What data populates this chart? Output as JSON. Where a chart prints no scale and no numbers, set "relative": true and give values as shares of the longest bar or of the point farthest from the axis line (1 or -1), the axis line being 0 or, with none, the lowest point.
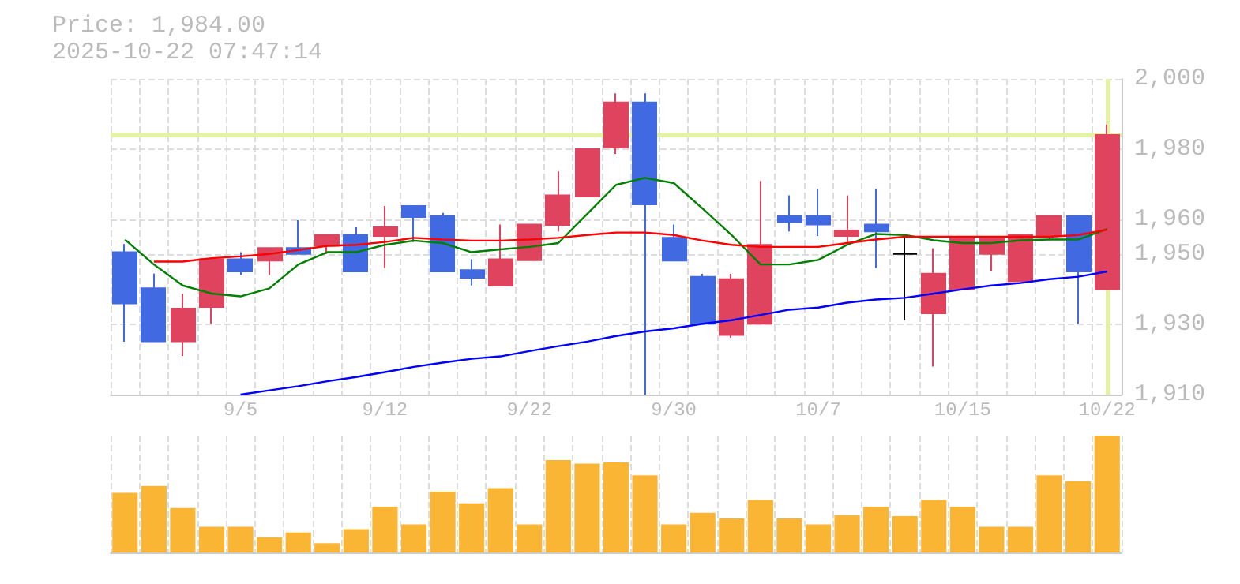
{
  "chart_data": [
    {
      "type": "candlestick",
      "title": "Price: 1,984.00",
      "subtitle": "2025-10-22 07:47:14",
      "categories": [
        null,
        null,
        null,
        null,
        "9/5",
        null,
        null,
        null,
        null,
        "9/12",
        null,
        null,
        null,
        null,
        "9/22",
        null,
        null,
        null,
        null,
        "9/30",
        null,
        null,
        null,
        null,
        "10/7",
        null,
        null,
        null,
        null,
        "10/15",
        null,
        null,
        null,
        null,
        "10/22"
      ],
      "ohlc": [
        [
          1950.6,
          1952.9,
          1925.1,
          1936.0
        ],
        [
          1940.3,
          1944.5,
          1925.2,
          1925.2
        ],
        [
          1925.2,
          1938.8,
          1921.0,
          1934.5
        ],
        [
          1935.0,
          1948.6,
          1930.2,
          1948.6
        ],
        [
          1948.6,
          1950.6,
          1944.1,
          1945.1
        ],
        [
          1948.2,
          1951.8,
          1944.1,
          1951.8
        ],
        [
          1951.8,
          1959.7,
          1950.1,
          1950.1
        ],
        [
          1952.4,
          1955.5,
          1950.1,
          1955.5
        ],
        [
          1955.5,
          1957.7,
          1945.1,
          1945.1
        ],
        [
          1955.2,
          1963.8,
          1946.1,
          1957.7
        ],
        [
          1963.8,
          1963.8,
          1953.5,
          1960.6
        ],
        [
          1960.9,
          1961.8,
          1945.1,
          1945.1
        ],
        [
          1945.5,
          1948.6,
          1941.1,
          1943.3
        ],
        [
          1941.1,
          1958.5,
          1941.1,
          1948.6
        ],
        [
          1948.3,
          1958.5,
          1948.3,
          1958.5
        ],
        [
          1958.3,
          1973.6,
          1956.5,
          1966.8
        ],
        [
          1966.5,
          1980.0,
          1966.5,
          1980.0
        ],
        [
          1980.5,
          1995.9,
          1978.6,
          1993.3
        ],
        [
          1993.3,
          1995.9,
          1910,
          1964.2
        ],
        [
          1954.7,
          1958.5,
          1948.2,
          1948.2
        ],
        [
          1943.6,
          1944.4,
          1930.2,
          1930.2
        ],
        [
          1927.0,
          1944.4,
          1926.2,
          1942.9
        ],
        [
          1930.2,
          1970.9,
          1930.2,
          1952.7
        ],
        [
          1960.9,
          1966.8,
          1956.5,
          1959.2
        ],
        [
          1960.9,
          1968.6,
          1955.2,
          1958.5
        ],
        [
          1955.2,
          1966.8,
          1953.5,
          1956.8
        ],
        [
          1958.5,
          1968.6,
          1946.1,
          1956.5
        ],
        [
          1950.1,
          1954.7,
          1931.2,
          1950.1
        ],
        [
          1933.2,
          1951.7,
          1918.0,
          1944.5
        ],
        [
          1940.0,
          1954.7,
          1940.0,
          1954.7
        ],
        [
          1950.1,
          1954.7,
          1945.1,
          1954.7
        ],
        [
          1942.3,
          1955.5,
          1942.3,
          1955.5
        ],
        [
          1955.2,
          1960.9,
          1954.0,
          1960.9
        ],
        [
          1960.9,
          1960.9,
          1930.2,
          1945.1
        ],
        [
          1940.0,
          1987.0,
          1940.0,
          1984.0
        ]
      ],
      "colors": [
        "#4169e1",
        "#4169e1",
        "#e0435e",
        "#e0435e",
        "#4169e1",
        "#e0435e",
        "#4169e1",
        "#e0435e",
        "#4169e1",
        "#e0435e",
        "#4169e1",
        "#4169e1",
        "#4169e1",
        "#e0435e",
        "#e0435e",
        "#e0435e",
        "#e0435e",
        "#e0435e",
        "#4169e1",
        "#4169e1",
        "#4169e1",
        "#e0435e",
        "#e0435e",
        "#4169e1",
        "#4169e1",
        "#e0435e",
        "#4169e1",
        "#000000",
        "#e0435e",
        "#e0435e",
        "#e0435e",
        "#e0435e",
        "#e0435e",
        "#4169e1",
        "#e0435e"
      ],
      "series": [
        {
          "type": "line",
          "color": "#008000",
          "values": [
            1954.2,
            1947.1,
            1941.1,
            1938.8,
            1938.0,
            1940.3,
            1947.1,
            1950.6,
            1950.6,
            1952.7,
            1953.9,
            1953.2,
            1950.6,
            1951.4,
            1952.1,
            1953.2,
            1961.5,
            1969.8,
            1971.8,
            1970.3,
            1963.0,
            1955.5,
            1947.1,
            1947.1,
            1948.4,
            1952.7,
            1955.8,
            1955.5,
            1954.0,
            1953.2,
            1953.2,
            1954.0,
            1954.2,
            1954.2,
            1957.2
          ]
        },
        {
          "type": "line",
          "color": "#ff0000",
          "values": [
            null,
            1947.9,
            1947.9,
            1948.9,
            1949.4,
            1950.1,
            1951.2,
            1952.4,
            1952.7,
            1953.5,
            1954.7,
            1954.2,
            1953.9,
            1953.9,
            1954.2,
            1954.7,
            1955.5,
            1956.2,
            1956.2,
            1955.5,
            1953.9,
            1952.7,
            1952.1,
            1952.1,
            1952.1,
            1953.2,
            1954.2,
            1955.0,
            1955.0,
            1955.0,
            1955.0,
            1955.0,
            1955.0,
            1955.5,
            1957.0
          ]
        },
        {
          "type": "line",
          "color": "#0000ff",
          "values": [
            null,
            null,
            null,
            null,
            1910,
            1911.2,
            1912.4,
            1913.8,
            1915.0,
            1916.4,
            1917.9,
            1919.1,
            1920.2,
            1920.9,
            1922.4,
            1923.8,
            1925.1,
            1926.7,
            1928.0,
            1928.9,
            1930.2,
            1931.2,
            1932.7,
            1934.2,
            1934.8,
            1936.2,
            1937.1,
            1937.6,
            1938.8,
            1940.0,
            1941.1,
            1941.8,
            1942.9,
            1943.6,
            1945.1
          ]
        }
      ],
      "ylim": [
        1910,
        2000
      ],
      "yticks": [
        {
          "value": 2000,
          "label": "2,000"
        },
        {
          "value": 1980,
          "label": "1,980"
        },
        {
          "value": 1960,
          "label": "1,960"
        },
        {
          "value": 1950,
          "label": "1,950"
        },
        {
          "value": 1930,
          "label": "1,930"
        },
        {
          "value": 1910,
          "label": "1,910"
        }
      ],
      "ref_lines": [
        {
          "axis": "y",
          "value": 1984,
          "color": "#e3f2a6"
        },
        {
          "axis": "x",
          "value": "10/22",
          "color": "#e3f2a6"
        }
      ],
      "grid": true
    },
    {
      "type": "bar",
      "relative": true,
      "categories": [
        null,
        null,
        null,
        null,
        null,
        null,
        null,
        null,
        null,
        null,
        null,
        null,
        null,
        null,
        null,
        null,
        null,
        null,
        null,
        null,
        null,
        null,
        null,
        null,
        null,
        null,
        null,
        null,
        null,
        null,
        null,
        null,
        null,
        null,
        null
      ],
      "values": [
        0.51,
        0.57,
        0.38,
        0.22,
        0.22,
        0.13,
        0.17,
        0.08,
        0.2,
        0.39,
        0.24,
        0.52,
        0.42,
        0.55,
        0.24,
        0.79,
        0.76,
        0.77,
        0.66,
        0.24,
        0.34,
        0.29,
        0.45,
        0.29,
        0.24,
        0.32,
        0.39,
        0.31,
        0.45,
        0.39,
        0.22,
        0.22,
        0.66,
        0.61,
        1
      ],
      "color": "#fbb534",
      "grid": "x"
    }
  ]
}
